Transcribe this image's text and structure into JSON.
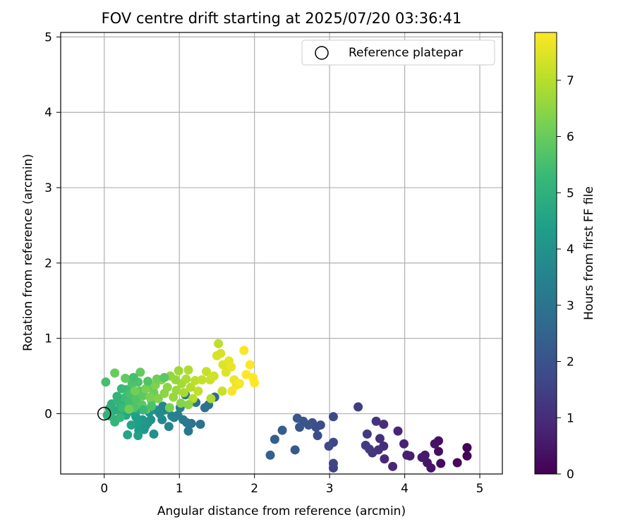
{
  "chart_data": {
    "type": "scatter",
    "title": "FOV centre drift starting at 2025/07/20 03:36:41",
    "xlabel": "Angular distance from reference (arcmin)",
    "ylabel": "Rotation from reference (arcmin)",
    "xlim": [
      -0.58,
      5.3
    ],
    "ylim": [
      -0.8,
      5.06
    ],
    "xticks": [
      0,
      1,
      2,
      3,
      4,
      5
    ],
    "yticks": [
      0,
      1,
      2,
      3,
      4,
      5
    ],
    "grid": true,
    "legend": {
      "placement": "top-right",
      "entries": [
        "Reference platepar"
      ]
    },
    "colorbar": {
      "label": "Hours from first FF file",
      "range": [
        0,
        7.85
      ],
      "ticks": [
        0,
        1,
        2,
        3,
        4,
        5,
        6,
        7
      ],
      "colormap": "viridis"
    },
    "reference_point": {
      "x": 0,
      "y": 0,
      "name": "Reference platepar"
    },
    "points": [
      {
        "x": 4.83,
        "y": -0.45,
        "t": 0.05
      },
      {
        "x": 4.83,
        "y": -0.56,
        "t": 0.1
      },
      {
        "x": 4.7,
        "y": -0.65,
        "t": 0.15
      },
      {
        "x": 4.48,
        "y": -0.66,
        "t": 0.25
      },
      {
        "x": 4.45,
        "y": -0.5,
        "t": 0.3
      },
      {
        "x": 4.45,
        "y": -0.36,
        "t": 0.35
      },
      {
        "x": 4.4,
        "y": -0.4,
        "t": 0.4
      },
      {
        "x": 4.35,
        "y": -0.72,
        "t": 0.45
      },
      {
        "x": 4.3,
        "y": -0.65,
        "t": 0.5
      },
      {
        "x": 4.27,
        "y": -0.55,
        "t": 0.55
      },
      {
        "x": 4.23,
        "y": -0.58,
        "t": 0.6
      },
      {
        "x": 4.07,
        "y": -0.56,
        "t": 0.65
      },
      {
        "x": 4.03,
        "y": -0.55,
        "t": 0.7
      },
      {
        "x": 3.99,
        "y": -0.4,
        "t": 0.75
      },
      {
        "x": 3.91,
        "y": -0.23,
        "t": 0.8
      },
      {
        "x": 3.84,
        "y": -0.7,
        "t": 0.85
      },
      {
        "x": 3.73,
        "y": -0.6,
        "t": 0.9
      },
      {
        "x": 3.72,
        "y": -0.43,
        "t": 0.95
      },
      {
        "x": 3.72,
        "y": -0.14,
        "t": 1.0
      },
      {
        "x": 3.67,
        "y": -0.33,
        "t": 1.05
      },
      {
        "x": 3.65,
        "y": -0.48,
        "t": 1.1
      },
      {
        "x": 3.62,
        "y": -0.1,
        "t": 1.15
      },
      {
        "x": 3.57,
        "y": -0.52,
        "t": 1.2
      },
      {
        "x": 3.53,
        "y": -0.47,
        "t": 1.25
      },
      {
        "x": 3.5,
        "y": -0.27,
        "t": 1.3
      },
      {
        "x": 3.48,
        "y": -0.42,
        "t": 1.35
      },
      {
        "x": 3.38,
        "y": 0.09,
        "t": 1.4
      },
      {
        "x": 3.05,
        "y": -0.72,
        "t": 1.55
      },
      {
        "x": 3.05,
        "y": -0.66,
        "t": 1.6
      },
      {
        "x": 3.05,
        "y": -0.38,
        "t": 1.65
      },
      {
        "x": 3.05,
        "y": -0.04,
        "t": 1.7
      },
      {
        "x": 2.99,
        "y": -0.43,
        "t": 1.75
      },
      {
        "x": 2.88,
        "y": -0.15,
        "t": 1.8
      },
      {
        "x": 2.84,
        "y": -0.29,
        "t": 1.85
      },
      {
        "x": 2.82,
        "y": -0.18,
        "t": 1.9
      },
      {
        "x": 2.77,
        "y": -0.12,
        "t": 1.95
      },
      {
        "x": 2.72,
        "y": -0.15,
        "t": 2.0
      },
      {
        "x": 2.65,
        "y": -0.1,
        "t": 2.05
      },
      {
        "x": 2.6,
        "y": -0.18,
        "t": 2.1
      },
      {
        "x": 2.57,
        "y": -0.06,
        "t": 2.15
      },
      {
        "x": 2.54,
        "y": -0.48,
        "t": 2.2
      },
      {
        "x": 2.37,
        "y": -0.22,
        "t": 2.3
      },
      {
        "x": 2.27,
        "y": -0.34,
        "t": 2.35
      },
      {
        "x": 2.21,
        "y": -0.55,
        "t": 2.4
      },
      {
        "x": 1.47,
        "y": 0.22,
        "t": 2.7
      },
      {
        "x": 1.39,
        "y": 0.12,
        "t": 2.8
      },
      {
        "x": 1.34,
        "y": 0.08,
        "t": 2.9
      },
      {
        "x": 1.28,
        "y": -0.14,
        "t": 3.0
      },
      {
        "x": 1.22,
        "y": 0.15,
        "t": 3.05
      },
      {
        "x": 1.16,
        "y": -0.13,
        "t": 3.1
      },
      {
        "x": 1.12,
        "y": -0.23,
        "t": 3.15
      },
      {
        "x": 1.1,
        "y": -0.12,
        "t": 3.2
      },
      {
        "x": 1.08,
        "y": 0.25,
        "t": 3.25
      },
      {
        "x": 1.05,
        "y": -0.08,
        "t": 3.3
      },
      {
        "x": 1.01,
        "y": 0.08,
        "t": 3.35
      },
      {
        "x": 0.98,
        "y": -0.02,
        "t": 3.4
      },
      {
        "x": 0.93,
        "y": -0.05,
        "t": 3.45
      },
      {
        "x": 0.9,
        "y": -0.03,
        "t": 3.5
      },
      {
        "x": 0.86,
        "y": -0.17,
        "t": 3.55
      },
      {
        "x": 0.81,
        "y": 0.05,
        "t": 3.6
      },
      {
        "x": 0.78,
        "y": 0.1,
        "t": 3.65
      },
      {
        "x": 0.77,
        "y": -0.08,
        "t": 3.7
      },
      {
        "x": 0.74,
        "y": 0.0,
        "t": 3.75
      },
      {
        "x": 0.69,
        "y": 0.05,
        "t": 3.8
      },
      {
        "x": 0.66,
        "y": -0.27,
        "t": 3.9
      },
      {
        "x": 0.62,
        "y": -0.08,
        "t": 3.95
      },
      {
        "x": 0.6,
        "y": 0.02,
        "t": 4.0
      },
      {
        "x": 0.58,
        "y": -0.12,
        "t": 4.05
      },
      {
        "x": 0.55,
        "y": -0.16,
        "t": 4.1
      },
      {
        "x": 0.53,
        "y": -0.21,
        "t": 4.15
      },
      {
        "x": 0.51,
        "y": -0.08,
        "t": 4.2
      },
      {
        "x": 0.49,
        "y": 0.06,
        "t": 4.25
      },
      {
        "x": 0.46,
        "y": -0.22,
        "t": 4.3
      },
      {
        "x": 0.44,
        "y": -0.13,
        "t": 4.35
      },
      {
        "x": 0.42,
        "y": -0.04,
        "t": 4.4
      },
      {
        "x": 0.45,
        "y": -0.29,
        "t": 4.45
      },
      {
        "x": 0.38,
        "y": 0.03,
        "t": 4.5
      },
      {
        "x": 0.36,
        "y": -0.15,
        "t": 4.55
      },
      {
        "x": 0.31,
        "y": -0.28,
        "t": 4.6
      },
      {
        "x": 0.29,
        "y": -0.02,
        "t": 4.65
      },
      {
        "x": 0.25,
        "y": 0.01,
        "t": 4.7
      },
      {
        "x": 0.22,
        "y": 0.13,
        "t": 4.75
      },
      {
        "x": 0.19,
        "y": 0.05,
        "t": 4.8
      },
      {
        "x": 0.15,
        "y": -0.08,
        "t": 4.85
      },
      {
        "x": 0.12,
        "y": 0.04,
        "t": 4.9
      },
      {
        "x": 0.1,
        "y": 0.13,
        "t": 4.95
      },
      {
        "x": 0.07,
        "y": 0.07,
        "t": 5.0
      },
      {
        "x": 0.04,
        "y": -0.02,
        "t": 5.05
      },
      {
        "x": 0.02,
        "y": 0.42,
        "t": 5.5
      },
      {
        "x": 0.08,
        "y": -0.03,
        "t": 5.1
      },
      {
        "x": 0.14,
        "y": -0.11,
        "t": 5.15
      },
      {
        "x": 0.18,
        "y": 0.18,
        "t": 5.2
      },
      {
        "x": 0.21,
        "y": -0.05,
        "t": 5.25
      },
      {
        "x": 0.24,
        "y": 0.08,
        "t": 5.3
      },
      {
        "x": 0.27,
        "y": 0.21,
        "t": 5.35
      },
      {
        "x": 0.3,
        "y": 0.32,
        "t": 5.4
      },
      {
        "x": 0.33,
        "y": 0.15,
        "t": 5.45
      },
      {
        "x": 0.35,
        "y": 0.26,
        "t": 5.55
      },
      {
        "x": 0.37,
        "y": 0.4,
        "t": 5.6
      },
      {
        "x": 0.4,
        "y": 0.08,
        "t": 5.65
      },
      {
        "x": 0.43,
        "y": 0.19,
        "t": 5.7
      },
      {
        "x": 0.47,
        "y": 0.3,
        "t": 5.75
      },
      {
        "x": 0.5,
        "y": 0.12,
        "t": 5.8
      },
      {
        "x": 0.52,
        "y": 0.24,
        "t": 5.85
      },
      {
        "x": 0.56,
        "y": 0.06,
        "t": 5.9
      },
      {
        "x": 0.59,
        "y": 0.35,
        "t": 5.95
      },
      {
        "x": 0.63,
        "y": 0.17,
        "t": 6.0
      },
      {
        "x": 0.66,
        "y": 0.28,
        "t": 6.05
      },
      {
        "x": 0.28,
        "y": 0.47,
        "t": 5.9
      },
      {
        "x": 0.14,
        "y": 0.54,
        "t": 6.0
      },
      {
        "x": 0.48,
        "y": 0.55,
        "t": 5.95
      },
      {
        "x": 0.33,
        "y": 0.06,
        "t": 6.1
      },
      {
        "x": 0.41,
        "y": 0.3,
        "t": 6.15
      },
      {
        "x": 0.55,
        "y": 0.33,
        "t": 6.2
      },
      {
        "x": 0.61,
        "y": 0.22,
        "t": 6.25
      },
      {
        "x": 0.68,
        "y": 0.38,
        "t": 6.3
      },
      {
        "x": 0.72,
        "y": 0.2,
        "t": 6.35
      },
      {
        "x": 0.76,
        "y": 0.45,
        "t": 6.4
      },
      {
        "x": 0.8,
        "y": 0.27,
        "t": 6.45
      },
      {
        "x": 0.84,
        "y": 0.35,
        "t": 6.5
      },
      {
        "x": 0.88,
        "y": 0.5,
        "t": 6.55
      },
      {
        "x": 0.92,
        "y": 0.22,
        "t": 6.6
      },
      {
        "x": 0.96,
        "y": 0.31,
        "t": 6.65
      },
      {
        "x": 0.99,
        "y": 0.57,
        "t": 6.7
      },
      {
        "x": 1.03,
        "y": 0.4,
        "t": 6.75
      },
      {
        "x": 1.06,
        "y": 0.28,
        "t": 6.8
      },
      {
        "x": 1.09,
        "y": 0.46,
        "t": 6.85
      },
      {
        "x": 1.12,
        "y": 0.58,
        "t": 6.9
      },
      {
        "x": 1.15,
        "y": 0.35,
        "t": 6.95
      },
      {
        "x": 1.18,
        "y": 0.2,
        "t": 7.0
      },
      {
        "x": 1.21,
        "y": 0.44,
        "t": 7.05
      },
      {
        "x": 1.25,
        "y": 0.3,
        "t": 7.1
      },
      {
        "x": 1.3,
        "y": 0.45,
        "t": 7.15
      },
      {
        "x": 1.36,
        "y": 0.56,
        "t": 7.2
      },
      {
        "x": 1.41,
        "y": 0.45,
        "t": 7.25
      },
      {
        "x": 1.46,
        "y": 0.5,
        "t": 7.3
      },
      {
        "x": 1.52,
        "y": 0.93,
        "t": 7.1
      },
      {
        "x": 1.55,
        "y": 0.8,
        "t": 7.35
      },
      {
        "x": 1.5,
        "y": 0.77,
        "t": 7.4
      },
      {
        "x": 1.58,
        "y": 0.65,
        "t": 7.45
      },
      {
        "x": 1.62,
        "y": 0.55,
        "t": 7.5
      },
      {
        "x": 1.66,
        "y": 0.7,
        "t": 7.55
      },
      {
        "x": 1.69,
        "y": 0.62,
        "t": 7.6
      },
      {
        "x": 1.73,
        "y": 0.45,
        "t": 7.65
      },
      {
        "x": 1.76,
        "y": 0.38,
        "t": 7.7
      },
      {
        "x": 1.7,
        "y": 0.3,
        "t": 7.72
      },
      {
        "x": 1.8,
        "y": 0.4,
        "t": 7.75
      },
      {
        "x": 1.86,
        "y": 0.84,
        "t": 7.8
      },
      {
        "x": 1.89,
        "y": 0.52,
        "t": 7.82
      },
      {
        "x": 1.94,
        "y": 0.65,
        "t": 7.84
      },
      {
        "x": 1.98,
        "y": 0.48,
        "t": 7.85
      },
      {
        "x": 2.0,
        "y": 0.41,
        "t": 7.85
      },
      {
        "x": 1.57,
        "y": 0.3,
        "t": 7.2
      },
      {
        "x": 1.42,
        "y": 0.2,
        "t": 6.9
      },
      {
        "x": 1.02,
        "y": 0.14,
        "t": 6.4
      },
      {
        "x": 0.87,
        "y": 0.08,
        "t": 6.2
      },
      {
        "x": 0.7,
        "y": 0.46,
        "t": 6.1
      },
      {
        "x": 0.58,
        "y": 0.43,
        "t": 5.7
      },
      {
        "x": 0.45,
        "y": 0.42,
        "t": 5.6
      },
      {
        "x": 0.23,
        "y": 0.33,
        "t": 5.3
      },
      {
        "x": 0.17,
        "y": 0.23,
        "t": 5.1
      },
      {
        "x": 0.39,
        "y": 0.48,
        "t": 5.5
      },
      {
        "x": 0.8,
        "y": 0.48,
        "t": 5.8
      },
      {
        "x": 0.95,
        "y": 0.45,
        "t": 6.6
      },
      {
        "x": 1.12,
        "y": 0.12,
        "t": 6.5
      },
      {
        "x": 0.63,
        "y": 0.1,
        "t": 5.6
      },
      {
        "x": 0.52,
        "y": 0.05,
        "t": 5.3
      }
    ]
  }
}
